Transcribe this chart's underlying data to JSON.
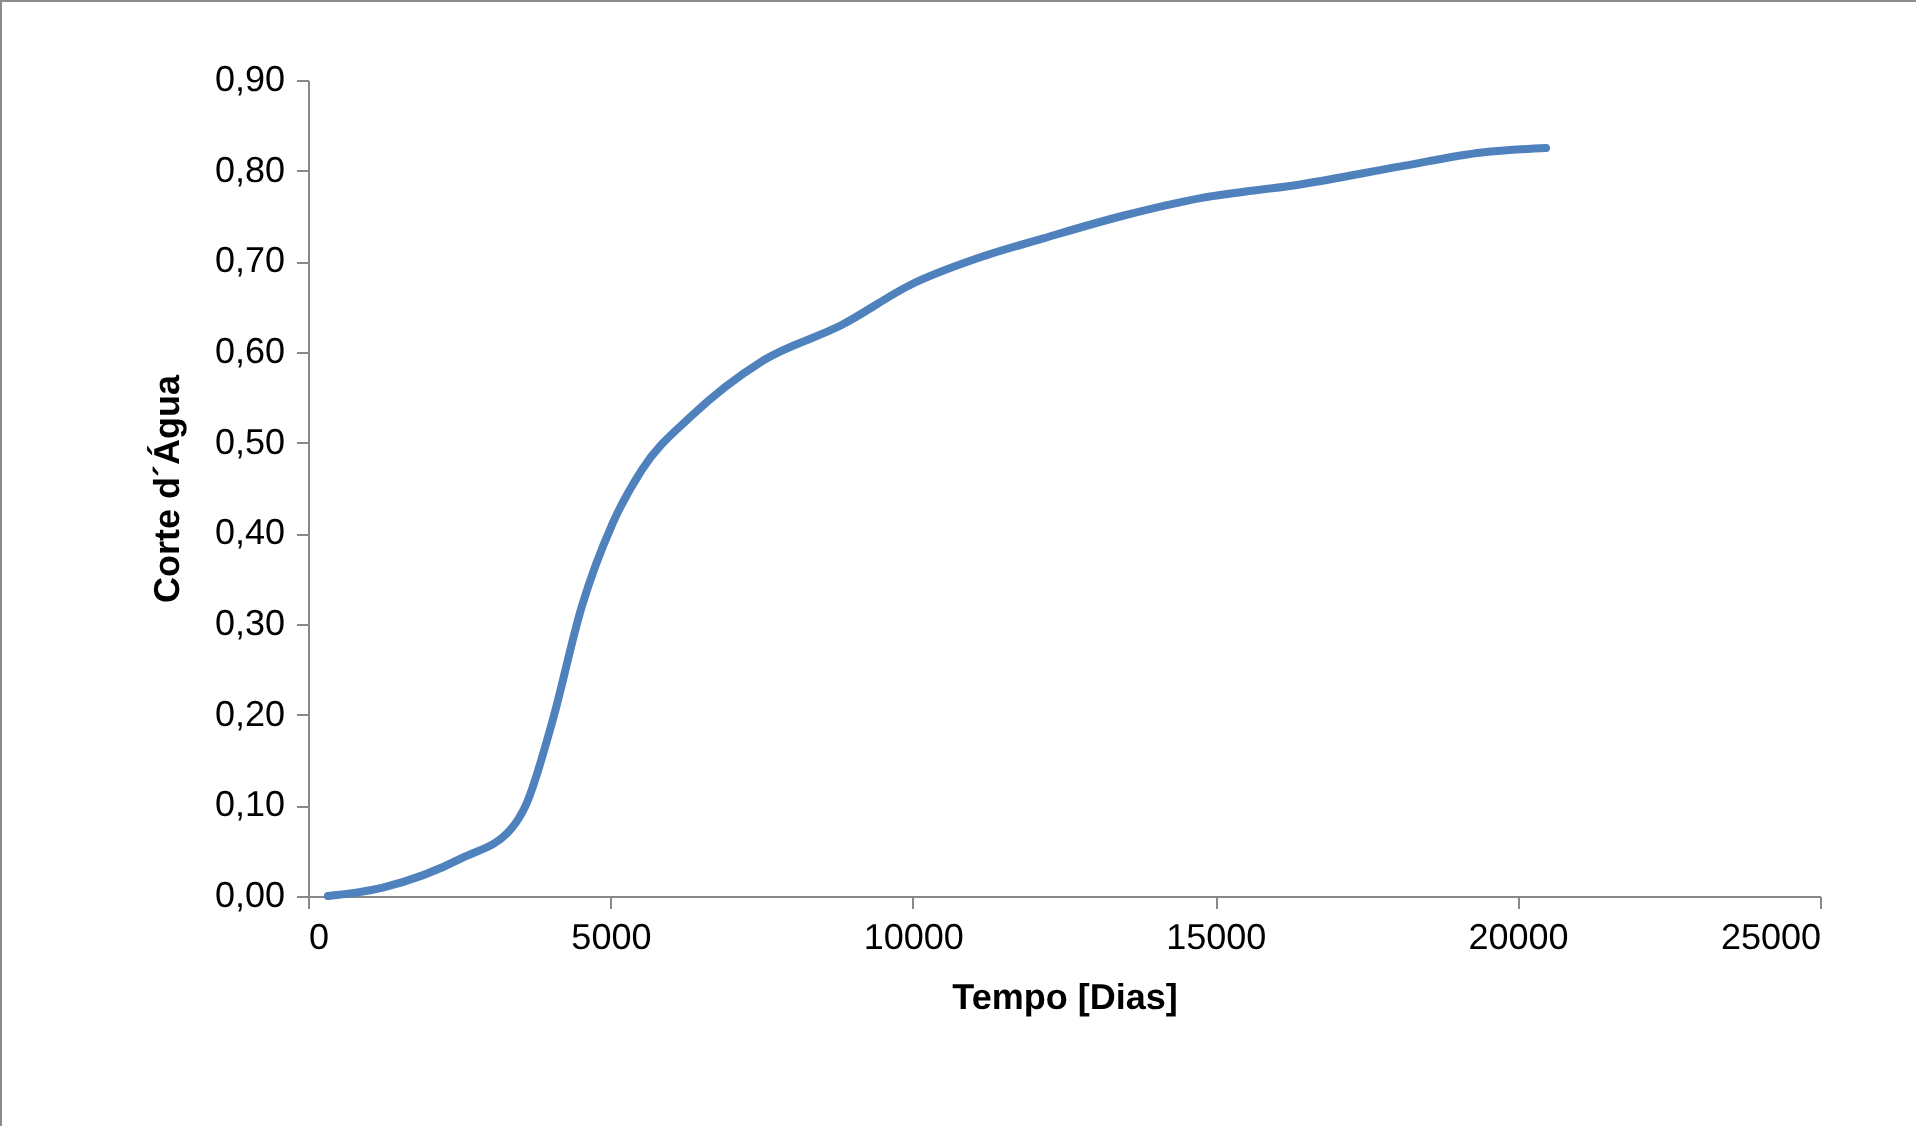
{
  "chart_data": {
    "type": "line",
    "xlabel": "Tempo [Dias]",
    "ylabel": "Corte d´Água",
    "x": [
      330,
      1220,
      2550,
      3370,
      3600,
      4030,
      4530,
      5030,
      5520,
      6350,
      7510,
      8830,
      9990,
      11140,
      12140,
      13460,
      14780,
      16430,
      18090,
      19410,
      20470
    ],
    "series": [
      {
        "color": "#4f81bd",
        "values": [
          0,
          0.009,
          0.042,
          0.075,
          0.1,
          0.19,
          0.32,
          0.41,
          0.47,
          0.53,
          0.59,
          0.63,
          0.675,
          0.705,
          0.725,
          0.75,
          0.77,
          0.785,
          0.805,
          0.82,
          0.825
        ]
      }
    ],
    "xlim": [
      0,
      25000
    ],
    "xticks": [
      0,
      5000,
      10000,
      15000,
      20000,
      25000
    ],
    "ylim": [
      0,
      0.9
    ],
    "yticks": [
      {
        "value": 0,
        "label": "0,00"
      },
      {
        "value": 0.1,
        "label": "0,10"
      },
      {
        "value": 0.2,
        "label": "0,20"
      },
      {
        "value": 0.3,
        "label": "0,30"
      },
      {
        "value": 0.4,
        "label": "0,40"
      },
      {
        "value": 0.5,
        "label": "0,50"
      },
      {
        "value": 0.6,
        "label": "0,60"
      },
      {
        "value": 0.7,
        "label": "0,70"
      },
      {
        "value": 0.8,
        "label": "0,80"
      },
      {
        "value": 0.9,
        "label": "0,90"
      }
    ],
    "grid": false,
    "marker": "none",
    "line_style": "solid"
  }
}
